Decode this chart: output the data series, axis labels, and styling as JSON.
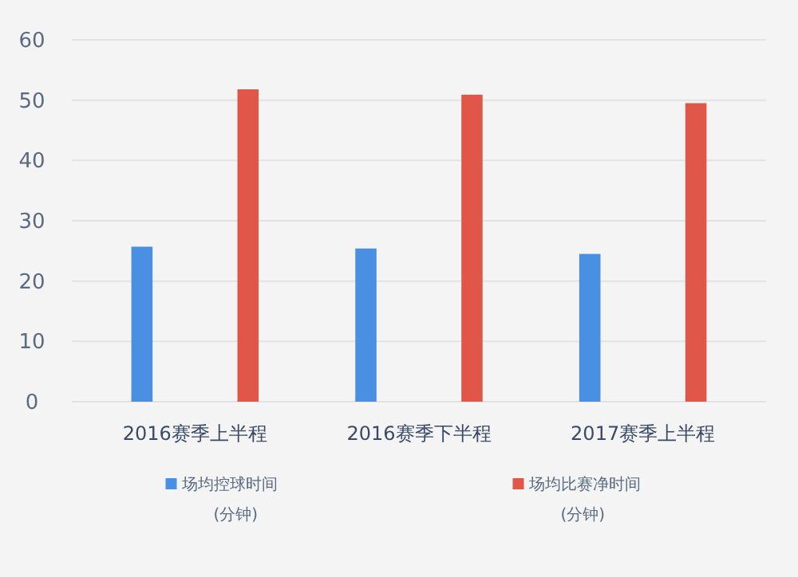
{
  "chart_data": {
    "type": "bar",
    "categories": [
      "2016赛季上半程",
      "2016赛季下半程",
      "2017赛季上半程"
    ],
    "series": [
      {
        "name": "场均控球时间\n(分钟)",
        "color": "#4a90e2",
        "values": [
          25.7,
          25.4,
          24.5
        ]
      },
      {
        "name": "场均比赛净时间\n(分钟)",
        "color": "#e0574a",
        "values": [
          51.8,
          50.9,
          49.5
        ]
      }
    ],
    "ylim": [
      0,
      60
    ],
    "yticks": [
      0,
      10,
      20,
      30,
      40,
      50,
      60
    ],
    "grid": "y",
    "legend": "bottom"
  }
}
